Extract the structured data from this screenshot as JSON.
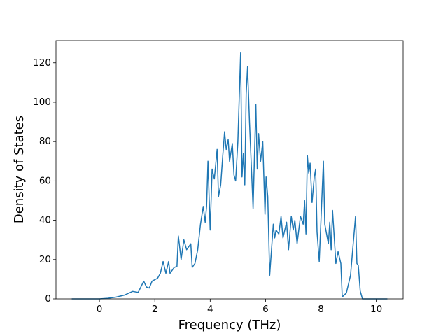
{
  "chart_data": {
    "type": "line",
    "xlabel": "Frequency (THz)",
    "ylabel": "Density of States",
    "x": [
      -1.0,
      0,
      0.3,
      0.6,
      0.9,
      1.2,
      1.4,
      1.6,
      1.7,
      1.8,
      1.9,
      2.1,
      2.2,
      2.3,
      2.4,
      2.5,
      2.55,
      2.7,
      2.8,
      2.85,
      2.95,
      3.05,
      3.15,
      3.3,
      3.35,
      3.45,
      3.55,
      3.65,
      3.75,
      3.82,
      3.87,
      3.92,
      4.0,
      4.07,
      4.15,
      4.25,
      4.3,
      4.38,
      4.45,
      4.52,
      4.58,
      4.65,
      4.7,
      4.8,
      4.86,
      4.92,
      5.0,
      5.1,
      5.15,
      5.2,
      5.25,
      5.3,
      5.35,
      5.42,
      5.55,
      5.65,
      5.7,
      5.75,
      5.82,
      5.9,
      5.98,
      6.02,
      6.08,
      6.15,
      6.28,
      6.33,
      6.38,
      6.48,
      6.56,
      6.63,
      6.76,
      6.83,
      6.93,
      7.0,
      7.06,
      7.14,
      7.26,
      7.36,
      7.41,
      7.46,
      7.51,
      7.56,
      7.61,
      7.68,
      7.76,
      7.81,
      7.86,
      7.94,
      8.09,
      8.14,
      8.27,
      8.32,
      8.37,
      8.42,
      8.54,
      8.62,
      8.72,
      8.77,
      8.92,
      9.07,
      9.25,
      9.3,
      9.35,
      9.42,
      9.5,
      10.4
    ],
    "values": [
      0,
      0,
      0.3,
      0.9,
      1.9,
      3.8,
      3.3,
      9,
      6,
      5.5,
      9,
      10.5,
      13,
      19,
      13,
      19,
      13,
      16,
      16.5,
      32,
      20,
      30,
      25,
      28,
      16,
      18,
      25,
      38,
      47,
      39,
      47,
      70,
      35,
      66,
      61,
      76,
      52,
      58,
      72,
      85,
      76,
      81,
      70,
      79,
      63,
      60,
      80,
      125,
      62,
      74,
      58,
      104,
      118,
      90,
      46,
      99,
      66,
      84,
      70,
      80,
      43,
      62,
      52,
      12,
      38,
      31,
      35,
      33,
      42,
      31,
      39,
      25,
      42,
      35,
      40,
      28,
      42,
      38,
      50,
      33,
      73,
      64,
      69,
      49,
      62,
      66,
      34,
      19,
      70,
      38,
      28,
      39,
      25,
      45,
      18,
      24,
      18,
      1,
      3,
      12,
      42,
      18,
      17,
      4,
      0,
      0
    ],
    "color": "#1f77b4",
    "xlim": [
      -1.57,
      10.97
    ],
    "xticks": [
      0,
      2,
      4,
      6,
      8,
      10
    ],
    "ylim": [
      0,
      131.3
    ],
    "yticks": [
      0,
      20,
      40,
      60,
      80,
      100,
      120
    ]
  }
}
